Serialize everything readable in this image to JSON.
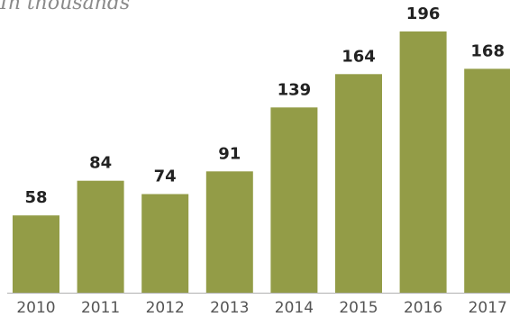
{
  "chart": {
    "subtitle": "In thousands"
  },
  "colors": {
    "bar": "#939c47",
    "baseline": "#b0b0b0"
  },
  "chart_data": {
    "type": "bar",
    "title": "",
    "subtitle": "In thousands",
    "xlabel": "",
    "ylabel": "",
    "categories": [
      "2010",
      "2011",
      "2012",
      "2013",
      "2014",
      "2015",
      "2016",
      "2017"
    ],
    "values": [
      58,
      84,
      74,
      91,
      139,
      164,
      196,
      168
    ],
    "ylim": [
      0,
      200
    ],
    "grid": false,
    "legend": "none"
  }
}
